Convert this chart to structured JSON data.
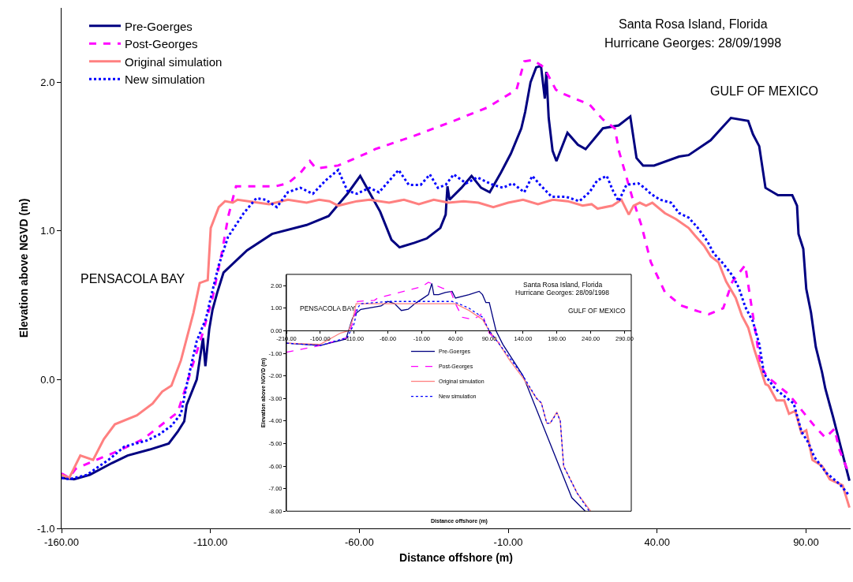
{
  "chart_data": [
    {
      "type": "line",
      "title": "Santa Rosa Island, Florida",
      "subtitle": "Hurricane Georges: 28/09/1998",
      "xlabel": "Distance offshore (m)",
      "ylabel": "Elevation above NGVD (m)",
      "annotations": [
        "PENSACOLA BAY",
        "GULF OF MEXICO"
      ],
      "xlim": [
        -160,
        105
      ],
      "ylim": [
        -1,
        2.5
      ],
      "xticks": [
        {
          "value": -160,
          "label": "-160.00"
        },
        {
          "value": -110,
          "label": "-110.00"
        },
        {
          "value": -60,
          "label": "-60.00"
        },
        {
          "value": -10,
          "label": "-10.00"
        },
        {
          "value": 40,
          "label": "40.00"
        },
        {
          "value": 90,
          "label": "90.00"
        }
      ],
      "yticks": [
        {
          "value": -1,
          "label": "-1.0"
        },
        {
          "value": 0,
          "label": "0.0"
        },
        {
          "value": 1,
          "label": "1.0"
        },
        {
          "value": 2,
          "label": "2.0"
        }
      ],
      "legend": "top left",
      "marker": "none",
      "series": [
        {
          "name": "Pre-Goerges",
          "color": "#000080",
          "line_style": "solid",
          "x": [
            -160,
            -155.8,
            -150.5,
            -143,
            -137.8,
            -130.4,
            -124,
            -121,
            -118.8,
            -118,
            -114.6,
            -112.5,
            -111.7,
            -110.4,
            -109.3,
            -107.8,
            -105.6,
            -97.7,
            -89.3,
            -77.7,
            -70.3,
            -64,
            -59.7,
            -53,
            -49.2,
            -46.5,
            -41.5,
            -37.3,
            -32.8,
            -31,
            -30.4,
            -29.7,
            -25.7,
            -22.3,
            -19.1,
            -16.2,
            -12.5,
            -9.1,
            -5.6,
            -4.3,
            -2.5,
            -0.6,
            1.0,
            2.3,
            2.8,
            3.6,
            4.9,
            6.2,
            9.9,
            13.4,
            16,
            21.8,
            27.1,
            31,
            33.1,
            35.3,
            39,
            47.4,
            50.6,
            58,
            61.6,
            64.8,
            70.6,
            72.2,
            74.3,
            76.4,
            80.6,
            85.4,
            87,
            87.5,
            89.1,
            90.1,
            91.7,
            93.3,
            95.4,
            96.5,
            98,
            99.1,
            104.6
          ],
          "values": [
            -0.66,
            -0.67,
            -0.64,
            -0.56,
            -0.51,
            -0.47,
            -0.43,
            -0.35,
            -0.28,
            -0.17,
            0.0,
            0.28,
            0.09,
            0.34,
            0.47,
            0.58,
            0.72,
            0.87,
            0.98,
            1.04,
            1.1,
            1.25,
            1.37,
            1.13,
            0.94,
            0.89,
            0.92,
            0.95,
            1.02,
            1.11,
            1.3,
            1.21,
            1.29,
            1.37,
            1.29,
            1.26,
            1.39,
            1.52,
            1.69,
            1.8,
            2.0,
            2.1,
            2.11,
            1.89,
            2.07,
            1.76,
            1.54,
            1.47,
            1.66,
            1.58,
            1.55,
            1.69,
            1.71,
            1.77,
            1.49,
            1.44,
            1.44,
            1.5,
            1.51,
            1.61,
            1.69,
            1.76,
            1.74,
            1.65,
            1.57,
            1.29,
            1.24,
            1.24,
            1.17,
            0.98,
            0.88,
            0.61,
            0.45,
            0.22,
            0.05,
            -0.06,
            -0.17,
            -0.25,
            -0.68
          ]
        },
        {
          "name": "Post-Georges",
          "color": "#ff00ff",
          "line_style": "dashed",
          "x": [
            -160,
            -157.4,
            -155.3,
            -148.4,
            -141,
            -132.6,
            -126.2,
            -121,
            -117.8,
            -112.5,
            -109.3,
            -106.2,
            -104,
            -101.4,
            -88.2,
            -84,
            -79.8,
            -76.6,
            -74.5,
            -67.1,
            -56.6,
            -54.7,
            -41.5,
            -28.3,
            -17,
            -7.2,
            -4.6,
            -1.7,
            2,
            6,
            7.5,
            17.3,
            21.8,
            25.8,
            27.3,
            31.6,
            34.7,
            37.9,
            42.6,
            47.9,
            53.7,
            57.4,
            62.2,
            65.3,
            69.6,
            72.2,
            74.8,
            77,
            84.3,
            92.8,
            96.5,
            99.6,
            101.2,
            103.8,
            104.6
          ],
          "values": [
            -0.63,
            -0.66,
            -0.6,
            -0.54,
            -0.48,
            -0.4,
            -0.3,
            -0.22,
            -0.02,
            0.32,
            0.55,
            0.85,
            1.1,
            1.3,
            1.3,
            1.32,
            1.39,
            1.47,
            1.42,
            1.44,
            1.53,
            1.55,
            1.64,
            1.74,
            1.83,
            1.95,
            2.14,
            2.15,
            2.1,
            1.95,
            1.93,
            1.85,
            1.75,
            1.69,
            1.53,
            1.23,
            1.04,
            0.79,
            0.59,
            0.5,
            0.46,
            0.44,
            0.48,
            0.66,
            0.77,
            0.43,
            0.09,
            0.02,
            -0.1,
            -0.31,
            -0.39,
            -0.33,
            -0.47,
            -0.6,
            -0.57
          ]
        },
        {
          "name": "Original simulation",
          "color": "#ff8080",
          "line_style": "solid",
          "x": [
            -160,
            -157.4,
            -153.7,
            -149.4,
            -145.8,
            -142.1,
            -134.7,
            -129.4,
            -126.2,
            -123.1,
            -119.9,
            -115.7,
            -113.6,
            -110.9,
            -109.9,
            -107.2,
            -105.1,
            -102.5,
            -100.9,
            -90.3,
            -84,
            -77.7,
            -73.5,
            -70,
            -67.1,
            -60.8,
            -56.6,
            -50,
            -45,
            -40,
            -35,
            -30,
            -25,
            -20,
            -15,
            -10,
            -5,
            0,
            5,
            10,
            15,
            18,
            20,
            25,
            28,
            30.5,
            32.1,
            34.2,
            36.3,
            38.4,
            42.6,
            46.3,
            50.6,
            52.7,
            55.8,
            58,
            60.6,
            63.2,
            66.4,
            68.5,
            70.6,
            72.7,
            76.4,
            77.4,
            80.1,
            82.7,
            84.3,
            86.4,
            88.5,
            90.1,
            92.2,
            95.4,
            98,
            102.3,
            104.6
          ],
          "values": [
            -0.64,
            -0.66,
            -0.51,
            -0.54,
            -0.4,
            -0.3,
            -0.24,
            -0.16,
            -0.08,
            -0.04,
            0.13,
            0.45,
            0.65,
            0.67,
            1.02,
            1.16,
            1.2,
            1.19,
            1.21,
            1.18,
            1.21,
            1.19,
            1.21,
            1.2,
            1.17,
            1.2,
            1.21,
            1.19,
            1.21,
            1.18,
            1.21,
            1.19,
            1.2,
            1.19,
            1.16,
            1.19,
            1.21,
            1.18,
            1.21,
            1.2,
            1.17,
            1.18,
            1.15,
            1.17,
            1.21,
            1.11,
            1.17,
            1.19,
            1.17,
            1.19,
            1.12,
            1.08,
            1.02,
            0.97,
            0.9,
            0.83,
            0.79,
            0.66,
            0.55,
            0.43,
            0.35,
            0.2,
            -0.03,
            -0.04,
            -0.14,
            -0.14,
            -0.23,
            -0.21,
            -0.36,
            -0.34,
            -0.54,
            -0.58,
            -0.67,
            -0.71,
            -0.86
          ]
        },
        {
          "name": "New simulation",
          "color": "#0000ff",
          "line_style": "dotted",
          "x": [
            -160,
            -157.4,
            -151.5,
            -143.6,
            -138.9,
            -131.5,
            -127.3,
            -123.1,
            -119.9,
            -117.8,
            -114.6,
            -111.5,
            -109.9,
            -107.2,
            -104.1,
            -98.8,
            -94.6,
            -91.4,
            -87.7,
            -84,
            -79.8,
            -75.6,
            -71.3,
            -67.1,
            -64,
            -60.8,
            -56.6,
            -53.4,
            -46.8,
            -43.4,
            -39.4,
            -36.3,
            -33.6,
            -31,
            -28.3,
            -24.1,
            -20.4,
            -15.1,
            -11.7,
            -8.5,
            -4.6,
            -1.9,
            0.7,
            4.6,
            9.4,
            13.9,
            17.3,
            19.9,
            23.1,
            25.2,
            27.1,
            29.7,
            33.7,
            35.8,
            37.9,
            41,
            44.7,
            47.4,
            50.6,
            53.7,
            56.9,
            59,
            62.2,
            65.3,
            67.4,
            69.6,
            72.2,
            74.3,
            75.9,
            79.6,
            83.3,
            85.9,
            88.5,
            90.7,
            92.8,
            97,
            101.2,
            104.6
          ],
          "values": [
            -0.66,
            -0.67,
            -0.64,
            -0.53,
            -0.45,
            -0.41,
            -0.37,
            -0.31,
            -0.23,
            -0.02,
            0.26,
            0.41,
            0.55,
            0.77,
            0.96,
            1.12,
            1.22,
            1.21,
            1.16,
            1.26,
            1.29,
            1.25,
            1.34,
            1.41,
            1.27,
            1.25,
            1.29,
            1.26,
            1.41,
            1.31,
            1.31,
            1.38,
            1.29,
            1.31,
            1.38,
            1.32,
            1.36,
            1.31,
            1.29,
            1.32,
            1.26,
            1.37,
            1.31,
            1.23,
            1.23,
            1.2,
            1.26,
            1.34,
            1.37,
            1.27,
            1.2,
            1.31,
            1.32,
            1.29,
            1.25,
            1.21,
            1.19,
            1.12,
            1.09,
            1.02,
            0.93,
            0.85,
            0.78,
            0.7,
            0.62,
            0.49,
            0.39,
            0.24,
            0.04,
            -0.06,
            -0.12,
            -0.16,
            -0.35,
            -0.42,
            -0.52,
            -0.63,
            -0.7,
            -0.78
          ]
        }
      ]
    },
    {
      "type": "line",
      "title": "Santa Rosa Island, Florida",
      "subtitle": "Hurricane Georges: 28/09/1998",
      "xlabel": "Distance offshore (m)",
      "ylabel": "Elevation above NGVD (m)",
      "annotations": [
        "PENSACOLA BAY",
        "GULF OF MEXICO"
      ],
      "xlim": [
        -210,
        300
      ],
      "ylim": [
        -8,
        2.5
      ],
      "xticks": [
        {
          "value": -210,
          "label": "-210.00"
        },
        {
          "value": -160,
          "label": "-160.00"
        },
        {
          "value": -110,
          "label": "-110.00"
        },
        {
          "value": -60,
          "label": "-60.00"
        },
        {
          "value": -10,
          "label": "-10.00"
        },
        {
          "value": 40,
          "label": "40.00"
        },
        {
          "value": 90,
          "label": "90.00"
        },
        {
          "value": 140,
          "label": "140.00"
        },
        {
          "value": 190,
          "label": "190.00"
        },
        {
          "value": 240,
          "label": "240.00"
        },
        {
          "value": 290,
          "label": "290.00"
        }
      ],
      "yticks": [
        {
          "value": -8,
          "label": "-8.00"
        },
        {
          "value": -7,
          "label": "-7.00"
        },
        {
          "value": -6,
          "label": "-6.00"
        },
        {
          "value": -5,
          "label": "-5.00"
        },
        {
          "value": -4,
          "label": "-4.00"
        },
        {
          "value": -3,
          "label": "-3.00"
        },
        {
          "value": -2,
          "label": "-2.00"
        },
        {
          "value": -1,
          "label": "-1.00"
        },
        {
          "value": 0,
          "label": "0.00"
        },
        {
          "value": 1,
          "label": "1.00"
        },
        {
          "value": 2,
          "label": "2.00"
        }
      ],
      "legend": "center",
      "marker": "none",
      "series": [
        {
          "name": "Pre-Goerges",
          "color": "#000080",
          "line_style": "solid",
          "x": [
            -210,
            -160,
            -122,
            -113,
            -110,
            -100,
            -70,
            -60,
            -50,
            -40,
            -30,
            -20,
            -10,
            0,
            5,
            8,
            15,
            25,
            35,
            40,
            60,
            75,
            80,
            85,
            90,
            100,
            110,
            140,
            212,
            232
          ],
          "values": [
            -0.55,
            -0.65,
            -0.37,
            0.5,
            0.7,
            0.95,
            1.1,
            1.3,
            1.2,
            0.9,
            0.95,
            1.2,
            1.4,
            1.6,
            2.1,
            1.6,
            1.6,
            1.7,
            1.75,
            1.45,
            1.6,
            1.75,
            1.6,
            1.25,
            1.25,
            0.0,
            -0.6,
            -2.0,
            -7.4,
            -8.0
          ]
        },
        {
          "name": "Post-Georges",
          "color": "#ff00ff",
          "line_style": "dashed",
          "x": [
            -210,
            -160,
            -120,
            -110,
            -105,
            -80,
            -75,
            -10,
            0,
            20,
            33,
            40,
            50,
            65,
            75,
            80,
            85,
            90,
            105
          ],
          "values": [
            -0.95,
            -0.65,
            -0.3,
            0.5,
            1.3,
            1.35,
            1.45,
            1.95,
            2.15,
            1.9,
            1.75,
            1.2,
            0.6,
            0.5,
            0.65,
            0.8,
            0.2,
            -0.1,
            -0.55
          ]
        },
        {
          "name": "Original simulation",
          "color": "#ff8080",
          "line_style": "solid",
          "x": [
            -210,
            -160,
            -130,
            -118,
            -112,
            -107,
            40,
            60,
            80,
            90,
            105,
            120,
            140,
            160,
            167,
            175,
            180,
            190,
            195,
            200,
            220,
            240
          ],
          "values": [
            -0.55,
            -0.6,
            -0.1,
            0.0,
            0.5,
            1.2,
            1.2,
            0.9,
            0.5,
            0.0,
            -0.6,
            -1.3,
            -2.1,
            -3.0,
            -3.2,
            -4.1,
            -4.1,
            -3.6,
            -4.0,
            -6.0,
            -7.2,
            -8.0
          ]
        },
        {
          "name": "New simulation",
          "color": "#0000ff",
          "line_style": "dotted",
          "x": [
            -210,
            -160,
            -120,
            -110,
            -105,
            -100,
            -60,
            -10,
            35,
            45,
            60,
            80,
            90,
            105,
            140,
            160,
            167,
            175,
            180,
            190,
            195,
            200,
            220,
            238
          ],
          "values": [
            -0.55,
            -0.65,
            -0.3,
            0.3,
            1.0,
            1.2,
            1.3,
            1.3,
            1.3,
            1.2,
            1.0,
            0.6,
            0.0,
            -0.6,
            -2.0,
            -3.0,
            -3.2,
            -4.1,
            -4.1,
            -3.65,
            -4.0,
            -6.0,
            -7.2,
            -8.0
          ]
        }
      ]
    }
  ]
}
